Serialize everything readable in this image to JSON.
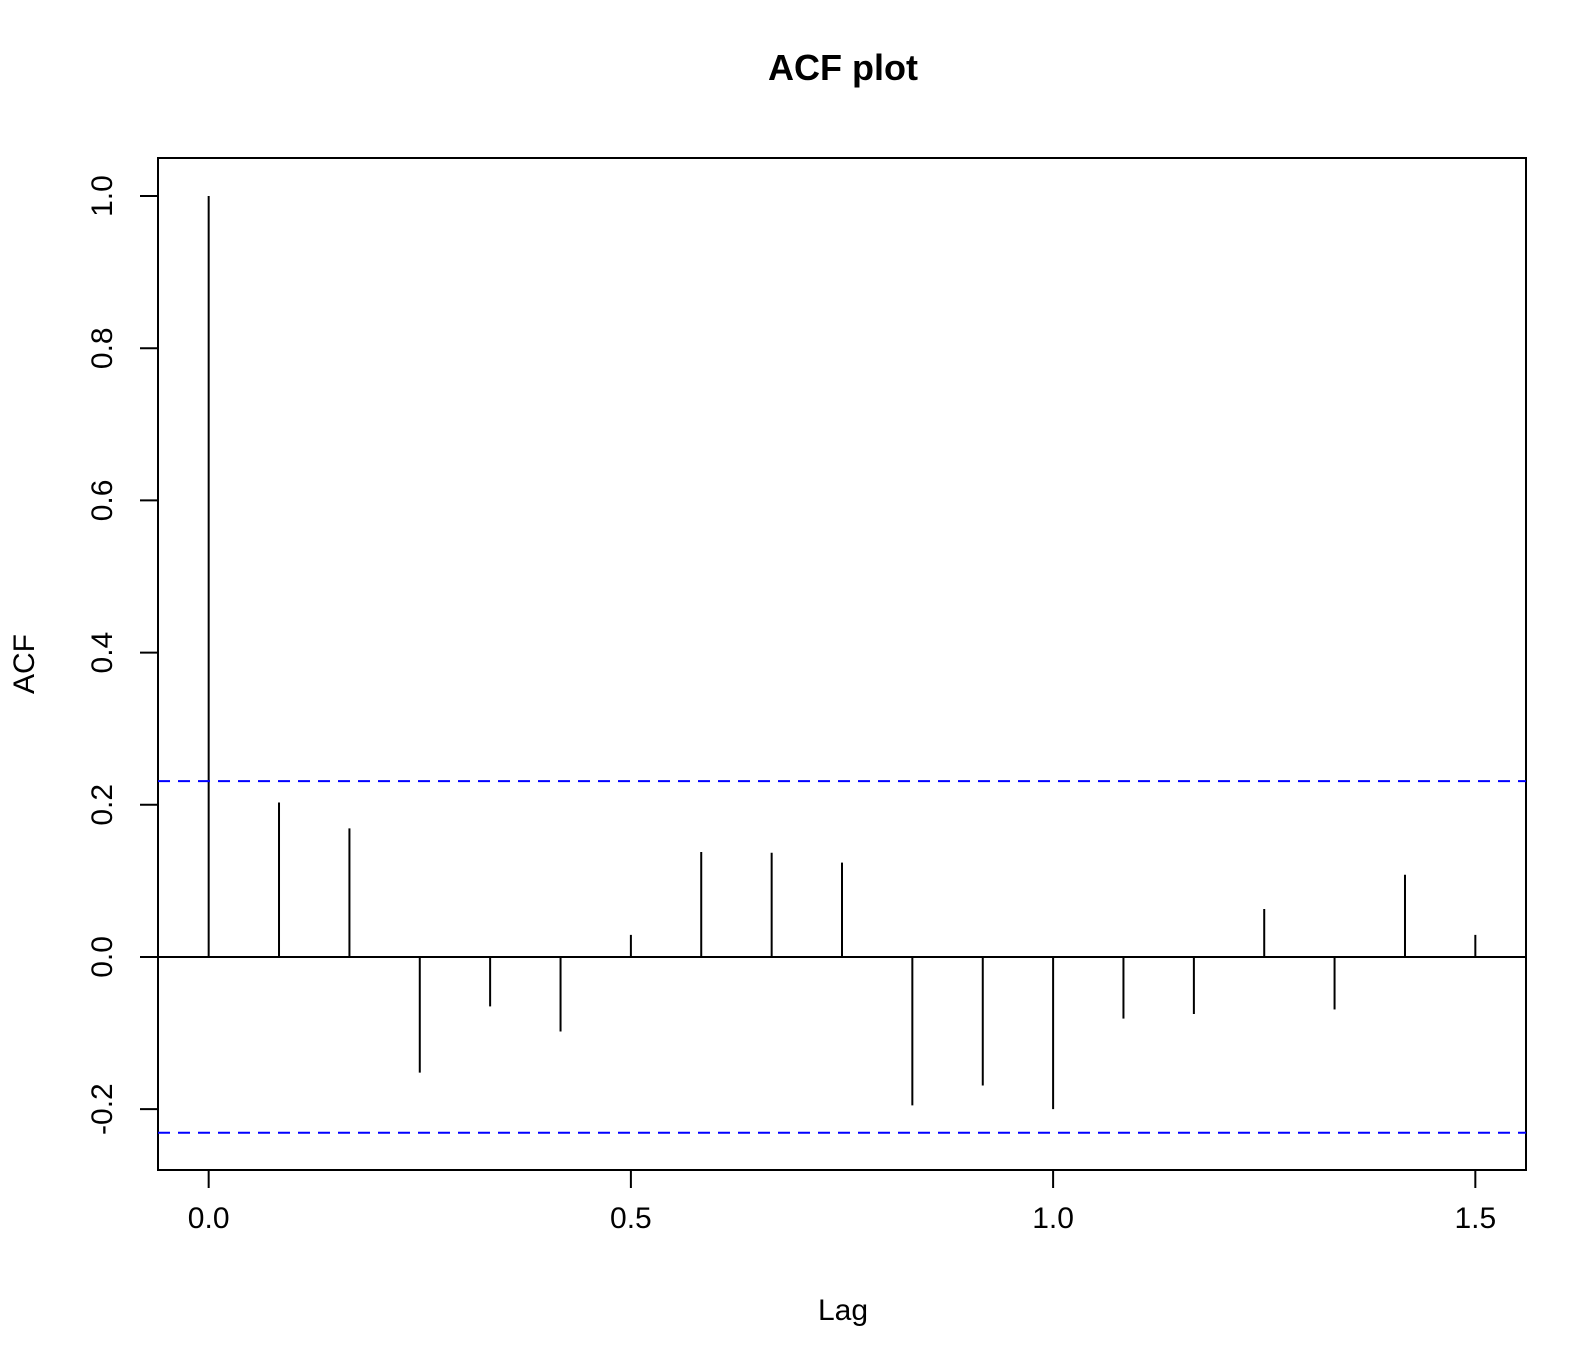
{
  "chart_data": {
    "type": "bar",
    "title": "ACF plot",
    "xlabel": "Lag",
    "ylabel": "ACF",
    "xlim": [
      -0.06,
      1.56
    ],
    "ylim": [
      -0.28,
      1.05
    ],
    "x_ticks": [
      0.0,
      0.5,
      1.0,
      1.5
    ],
    "x_tick_labels": [
      "0.0",
      "0.5",
      "1.0",
      "1.5"
    ],
    "y_ticks": [
      -0.2,
      0.0,
      0.2,
      0.4,
      0.6,
      0.8,
      1.0
    ],
    "y_tick_labels": [
      "-0.2",
      "0.0",
      "0.2",
      "0.4",
      "0.6",
      "0.8",
      "1.0"
    ],
    "grid": false,
    "lags": [
      0.0,
      0.0833,
      0.1667,
      0.25,
      0.3333,
      0.4167,
      0.5,
      0.5833,
      0.6667,
      0.75,
      0.8333,
      0.9167,
      1.0,
      1.0833,
      1.1667,
      1.25,
      1.3333,
      1.4167,
      1.5
    ],
    "acf": [
      1.0,
      0.203,
      0.169,
      -0.152,
      -0.065,
      -0.098,
      0.029,
      0.138,
      0.137,
      0.124,
      -0.195,
      -0.169,
      -0.2,
      -0.081,
      -0.075,
      0.063,
      -0.069,
      0.108,
      0.029
    ],
    "confidence_bounds": [
      0.231,
      -0.231
    ],
    "colors": {
      "bars": "#000000",
      "confidence": "#0000ff",
      "axes": "#000000"
    }
  }
}
